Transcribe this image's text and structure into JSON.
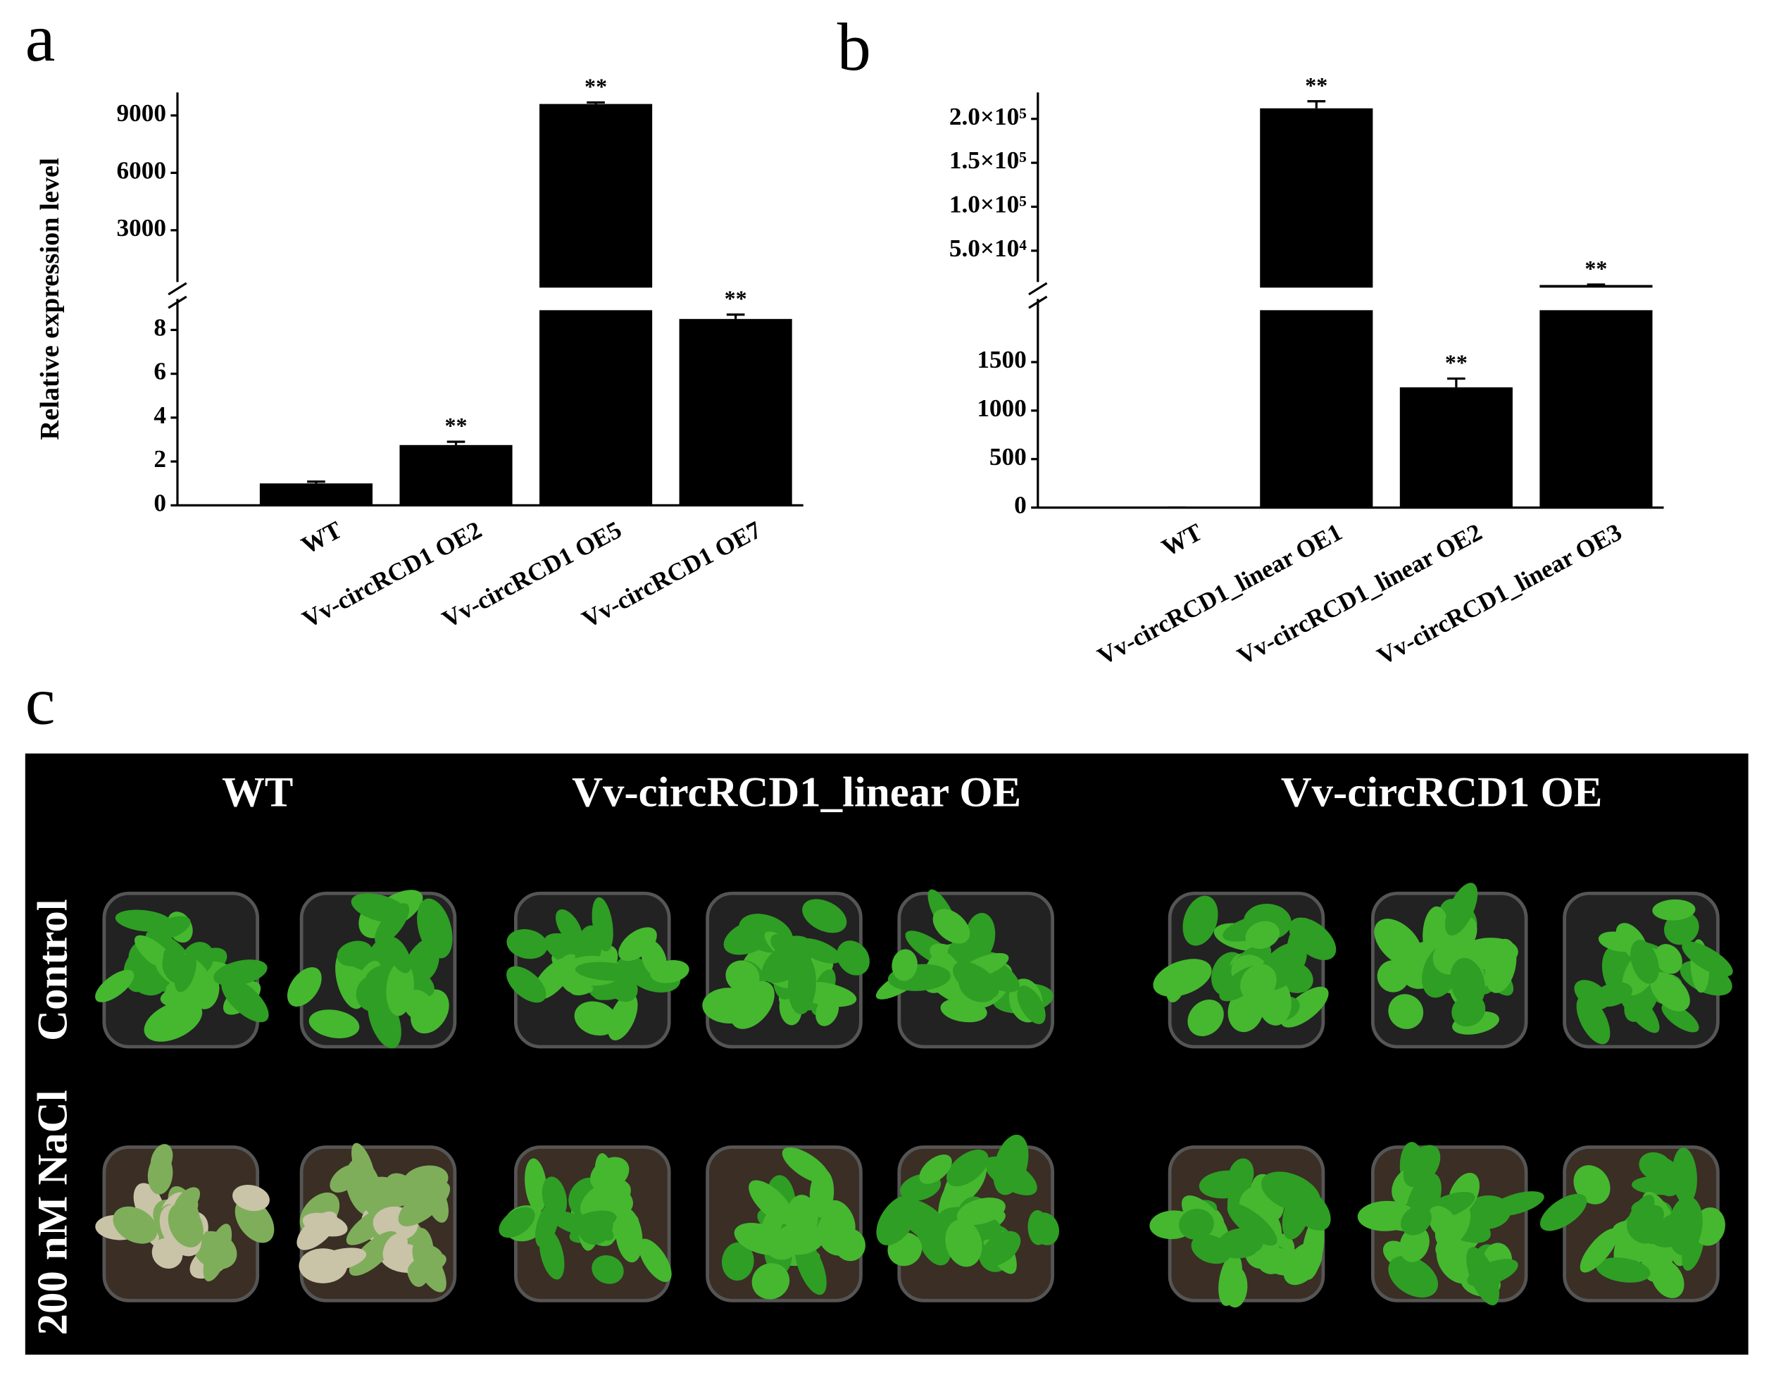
{
  "chart_data": [
    {
      "type": "bar",
      "panel_label": "a",
      "y_label": "Relative expression level",
      "categories": [
        "WT",
        "Vv-circRCD1 OE2",
        "Vv-circRCD1 OE5",
        "Vv-circRCD1 OE7"
      ],
      "values": [
        1.0,
        2.75,
        9600,
        8.5
      ],
      "errors": [
        0.08,
        0.15,
        80,
        0.2
      ],
      "annotations": [
        null,
        "**",
        "**",
        "**"
      ],
      "color": "#000000",
      "ylim": [
        0,
        8.9
      ],
      "yticks": [
        0,
        2,
        4,
        6,
        8
      ],
      "ylim_upper": [
        0,
        10200
      ],
      "yticks_upper": [
        3000,
        6000,
        9000
      ],
      "axis_break": true
    },
    {
      "type": "bar",
      "panel_label": "b",
      "categories": [
        "WT",
        "Vv-circRCD1_linear OE1",
        "Vv-circRCD1_linear OE2",
        "Vv-circRCD1_linear OE3"
      ],
      "values": [
        1.0,
        212000,
        1240,
        11000
      ],
      "errors": [
        0.05,
        8000,
        90,
        500
      ],
      "annotations": [
        null,
        "**",
        "**",
        "**"
      ],
      "color": "#000000",
      "ylim": [
        0,
        2035
      ],
      "yticks": [
        0,
        500,
        1000,
        1500
      ],
      "ylim_upper": [
        8000,
        230000
      ],
      "yticks_upper": [
        {
          "value": 50000,
          "label": "5.0×10⁴"
        },
        {
          "value": 100000,
          "label": "1.0×10⁵"
        },
        {
          "value": 150000,
          "label": "1.5×10⁵"
        },
        {
          "value": 200000,
          "label": "2.0×10⁵"
        }
      ],
      "axis_break": true
    }
  ],
  "photo_panel": {
    "panel_label": "c",
    "columns": [
      "WT",
      "Vv-circRCD1_linear OE",
      "Vv-circRCD1 OE"
    ],
    "rows": [
      "Control",
      "200 nM NaCl"
    ]
  }
}
